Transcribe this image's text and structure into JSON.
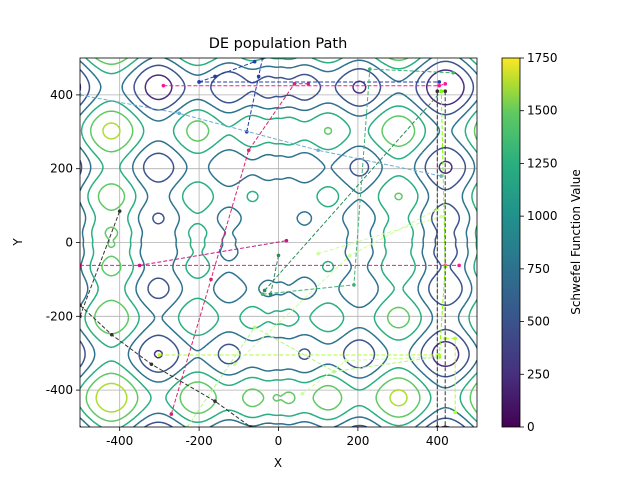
{
  "chart_data": {
    "type": "contour",
    "title": "DE population Path",
    "xlabel": "X",
    "ylabel": "Y",
    "xlim": [
      -500,
      500
    ],
    "ylim": [
      -500,
      500
    ],
    "xticks": [
      -400,
      -200,
      0,
      200,
      400
    ],
    "yticks": [
      -400,
      -200,
      0,
      200,
      400
    ],
    "grid": true,
    "colorbar": {
      "label": "Schwefel Function Value",
      "range": [
        0,
        1750
      ],
      "ticks": [
        0,
        250,
        500,
        750,
        1000,
        1250,
        1500,
        1750
      ],
      "level_colors": [
        "#440154",
        "#472f7d",
        "#3b528b",
        "#2c728e",
        "#21918c",
        "#28ae80",
        "#5ec962",
        "#addc30",
        "#fde725"
      ]
    },
    "contour_levels": [
      250,
      500,
      750,
      1000,
      1250,
      1500
    ],
    "paths": [
      {
        "color": "#ff1493",
        "points": [
          [
            -290,
            425
          ],
          [
            405,
            425
          ],
          [
            420,
            430
          ]
        ]
      },
      {
        "color": "#ff1493",
        "points": [
          [
            -500,
            -62
          ],
          [
            420,
            -62
          ],
          [
            455,
            -62
          ]
        ]
      },
      {
        "color": "#d6246e",
        "points": [
          [
            -270,
            -465
          ],
          [
            -170,
            -100
          ],
          [
            -75,
            250
          ],
          [
            40,
            430
          ],
          [
            75,
            430
          ]
        ]
      },
      {
        "color": "#c71585",
        "points": [
          [
            -350,
            -62
          ],
          [
            20,
            5
          ]
        ]
      },
      {
        "color": "#1f3fa8",
        "points": [
          [
            -200,
            435
          ],
          [
            405,
            435
          ]
        ]
      },
      {
        "color": "#1f3fa8",
        "points": [
          [
            -80,
            300
          ],
          [
            -50,
            450
          ],
          [
            -40,
            500
          ]
        ]
      },
      {
        "color": "#1f3fa8",
        "points": [
          [
            -200,
            435
          ],
          [
            -160,
            450
          ],
          [
            -60,
            490
          ]
        ]
      },
      {
        "color": "#6baed6",
        "points": [
          [
            -500,
            400
          ],
          [
            -250,
            350
          ],
          [
            100,
            250
          ],
          [
            410,
            180
          ]
        ]
      },
      {
        "color": "#2e8b57",
        "points": [
          [
            -35,
            -130
          ],
          [
            410,
            410
          ]
        ]
      },
      {
        "color": "#3cb371",
        "points": [
          [
            -40,
            -140
          ],
          [
            190,
            -115
          ],
          [
            230,
            470
          ],
          [
            440,
            460
          ]
        ]
      },
      {
        "color": "#2e8b57",
        "points": [
          [
            0,
            -35
          ],
          [
            -20,
            -140
          ]
        ]
      },
      {
        "color": "#7fff00",
        "points": [
          [
            405,
            -310
          ],
          [
            420,
            -65
          ],
          [
            410,
            410
          ]
        ]
      },
      {
        "color": "#adff2f",
        "points": [
          [
            -300,
            -305
          ],
          [
            405,
            -305
          ]
        ]
      },
      {
        "color": "#adff2f",
        "points": [
          [
            420,
            -260
          ],
          [
            445,
            -260
          ],
          [
            445,
            -460
          ]
        ]
      },
      {
        "color": "#b5f58a",
        "points": [
          [
            -230,
            -500
          ],
          [
            -60,
            -230
          ],
          [
            140,
            -350
          ],
          [
            400,
            -310
          ]
        ]
      },
      {
        "color": "#ccff99",
        "points": [
          [
            -110,
            -330
          ],
          [
            180,
            -35
          ],
          [
            400,
            90
          ]
        ]
      },
      {
        "color": "#ccff99",
        "points": [
          [
            60,
            -410
          ],
          [
            170,
            -320
          ],
          [
            400,
            -310
          ]
        ]
      },
      {
        "color": "#ccff99",
        "points": [
          [
            100,
            -30
          ],
          [
            410,
            70
          ]
        ]
      },
      {
        "color": "#333333",
        "points": [
          [
            -500,
            -170
          ],
          [
            -420,
            -250
          ],
          [
            -320,
            -330
          ],
          [
            -160,
            -430
          ],
          [
            -70,
            -500
          ]
        ]
      },
      {
        "color": "#333333",
        "points": [
          [
            -500,
            -200
          ],
          [
            -400,
            85
          ]
        ]
      },
      {
        "color": "#333333",
        "points": [
          [
            400,
            410
          ],
          [
            400,
            -500
          ]
        ]
      },
      {
        "color": "#333333",
        "points": [
          [
            420,
            410
          ],
          [
            420,
            -500
          ]
        ]
      }
    ]
  }
}
